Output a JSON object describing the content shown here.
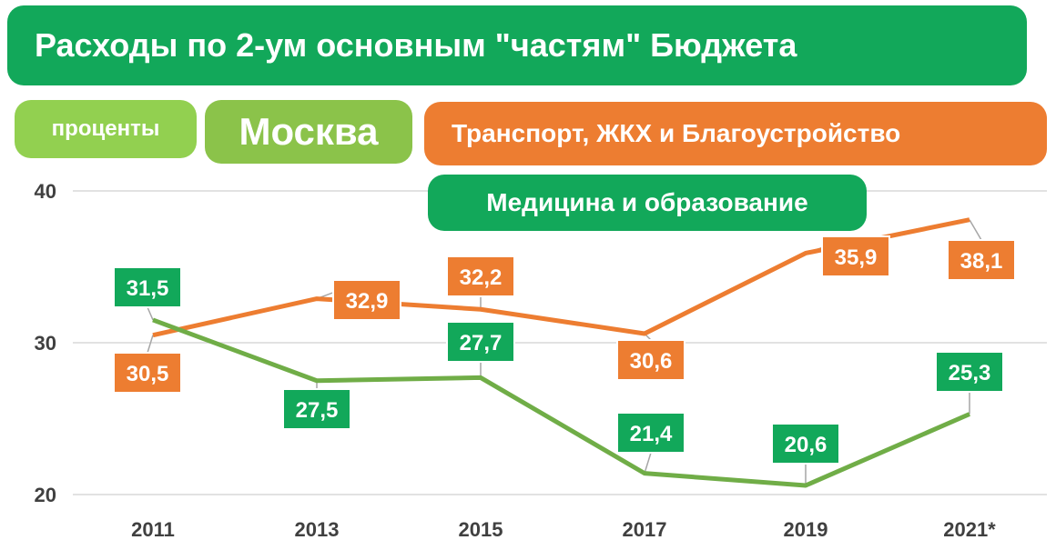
{
  "title": "Расходы по 2-ум основным \"частям\" Бюджета",
  "unit_badge": "проценты",
  "region_badge": "Москва",
  "colors": {
    "orange": "#ed7d31",
    "green": "#70ad47",
    "green_label": "#12a85a"
  },
  "chart_data": {
    "type": "line",
    "categories": [
      "2011",
      "2013",
      "2015",
      "2017",
      "2019",
      "2021*"
    ],
    "ylim": [
      20,
      40
    ],
    "yticks": [
      20,
      30,
      40
    ],
    "grid": true,
    "legend": "top-right",
    "series": [
      {
        "name": "Транспорт, ЖКХ и Благоустройство",
        "values": [
          30.5,
          32.9,
          32.2,
          30.6,
          35.9,
          38.1
        ],
        "labels": [
          "30,5",
          "32,9",
          "32,2",
          "30,6",
          "35,9",
          "38,1"
        ]
      },
      {
        "name": "Медицина и образование",
        "values": [
          31.5,
          27.5,
          27.7,
          21.4,
          20.6,
          25.3
        ],
        "labels": [
          "31,5",
          "27,5",
          "27,7",
          "21,4",
          "20,6",
          "25,3"
        ]
      }
    ]
  }
}
